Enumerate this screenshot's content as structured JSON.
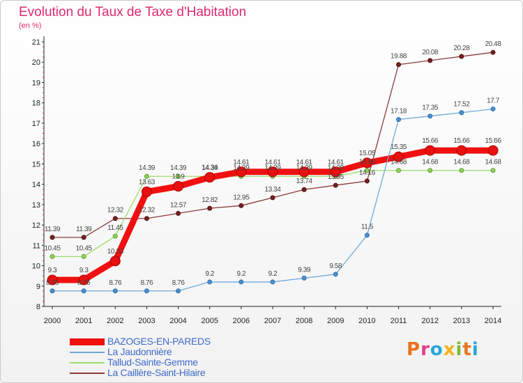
{
  "title": "Evolution du Taux de Taxe d'Habitation",
  "unit": "(en %)",
  "brand": {
    "text": "Proxiti",
    "colors": [
      "#e8731e",
      "#e13c8c",
      "#29a6d9",
      "#f2b31b",
      "#7cbd2e",
      "#e8731e",
      "#29a6d9"
    ]
  },
  "chart_data": {
    "type": "line",
    "x": [
      2000,
      2001,
      2002,
      2003,
      2004,
      2005,
      2006,
      2007,
      2008,
      2009,
      2010,
      2011,
      2012,
      2013,
      2014
    ],
    "ylim": [
      8,
      21
    ],
    "yticks": [
      8,
      9,
      10,
      11,
      12,
      13,
      14,
      15,
      16,
      17,
      18,
      19,
      20,
      21
    ],
    "grid": false,
    "legend_position": "bottom-left",
    "series": [
      {
        "name": "BAZOGES-EN-PAREDS",
        "color": "#f01010",
        "marker_fill": "#e81010",
        "marker_stroke": "#b00000",
        "width": 9,
        "marker_r": 7,
        "values": [
          9.3,
          9.3,
          10.23,
          13.63,
          13.9,
          14.34,
          14.61,
          14.61,
          14.61,
          14.61,
          15.05,
          15.35,
          15.66,
          15.66,
          15.66
        ],
        "labels": [
          "9.3",
          "9.3",
          "10.23",
          "13.63",
          "13.9",
          "14.34",
          "14.61",
          "14.61",
          "14.61",
          "14.61",
          "15.05",
          "15.35",
          "15.66",
          "15.66",
          "15.66"
        ]
      },
      {
        "name": "La Jaudonnière",
        "color": "#6fa8d8",
        "marker_fill": "#4a90d0",
        "marker_stroke": "#2f6fa8",
        "width": 1.3,
        "marker_r": 3,
        "values": [
          8.76,
          8.76,
          8.76,
          8.76,
          8.76,
          9.2,
          9.2,
          9.2,
          9.39,
          9.58,
          11.5,
          17.18,
          17.35,
          17.52,
          17.7
        ],
        "labels": [
          "8.76",
          "8.76",
          "8.76",
          "8.76",
          "8.76",
          "9.2",
          "9.2",
          "9.2",
          "9.39",
          "9.58",
          "11.5",
          "17.18",
          "17.35",
          "17.52",
          "17.7"
        ]
      },
      {
        "name": "Tallud-Sainte-Gemme",
        "color": "#9ddc6c",
        "marker_fill": "#8fd45a",
        "marker_stroke": "#5e9e32",
        "width": 1.3,
        "marker_r": 3,
        "values": [
          10.45,
          10.45,
          11.45,
          14.39,
          14.39,
          14.39,
          14.39,
          14.39,
          14.39,
          14.39,
          14.68,
          14.68,
          14.68,
          14.68,
          14.68
        ],
        "labels": [
          "10.45",
          "10.45",
          "11.45",
          "14.39",
          "14.39",
          "14.39",
          "14.39",
          "14.39",
          "14.39",
          "14.39",
          "14.68",
          "14.68",
          "14.68",
          "14.68",
          "14.68"
        ]
      },
      {
        "name": "La Caillère-Saint-Hilaire",
        "color": "#8a3a3a",
        "marker_fill": "#7a2020",
        "marker_stroke": "#4a1010",
        "width": 1.3,
        "marker_r": 3,
        "values": [
          11.39,
          11.39,
          12.32,
          12.32,
          12.57,
          12.82,
          12.95,
          13.34,
          13.74,
          13.95,
          14.16,
          19.88,
          20.08,
          20.28,
          20.48
        ],
        "labels": [
          "11.39",
          "11.39",
          "12.32",
          "12.32",
          "12.57",
          "12.82",
          "12.95",
          "13.34",
          "13.74",
          "13.95",
          "14.16",
          "19.88",
          "20.08",
          "20.28",
          "20.48"
        ]
      }
    ]
  }
}
